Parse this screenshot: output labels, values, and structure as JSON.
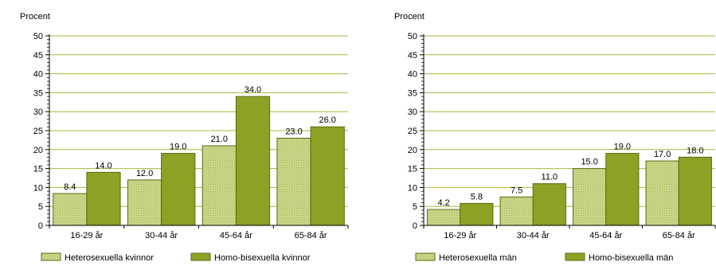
{
  "colors": {
    "hetero_fill": "#d2dd96",
    "hetero_dot": "#9aab3c",
    "homo_fill": "#8ea125",
    "bar_edge": "#5c6b10",
    "grid": "#a7b83a",
    "axis": "#000000"
  },
  "chart_data": [
    {
      "type": "bar",
      "ylabel": "Procent",
      "ylim": [
        0,
        50
      ],
      "yticks": [
        0,
        5,
        10,
        15,
        20,
        25,
        30,
        35,
        40,
        45,
        50
      ],
      "grid": true,
      "legend_position": "bottom",
      "categories": [
        "16-29 år",
        "30-44 år",
        "45-64 år",
        "65-84 år"
      ],
      "series": [
        {
          "name": "Heterosexuella kvinnor",
          "values": [
            8.4,
            12.0,
            21.0,
            23.0
          ],
          "value_labels": [
            "8.4",
            "12.0",
            "21.0",
            "23.0"
          ]
        },
        {
          "name": "Homo-bisexuella kvinnor",
          "values": [
            14.0,
            19.0,
            34.0,
            26.0
          ],
          "value_labels": [
            "14.0",
            "19.0",
            "34.0",
            "26.0"
          ]
        }
      ]
    },
    {
      "type": "bar",
      "ylabel": "Procent",
      "ylim": [
        0,
        50
      ],
      "yticks": [
        0,
        5,
        10,
        15,
        20,
        25,
        30,
        35,
        40,
        45,
        50
      ],
      "grid": true,
      "legend_position": "bottom",
      "categories": [
        "16-29 år",
        "30-44 år",
        "45-64 år",
        "65-84 år"
      ],
      "series": [
        {
          "name": "Heterosexuella män",
          "values": [
            4.2,
            7.5,
            15.0,
            17.0
          ],
          "value_labels": [
            "4.2",
            "7.5",
            "15.0",
            "17.0"
          ]
        },
        {
          "name": "Homo-bisexuella män",
          "values": [
            5.8,
            11.0,
            19.0,
            18.0
          ],
          "value_labels": [
            "5.8",
            "11.0",
            "19.0",
            "18.0"
          ]
        }
      ]
    }
  ]
}
